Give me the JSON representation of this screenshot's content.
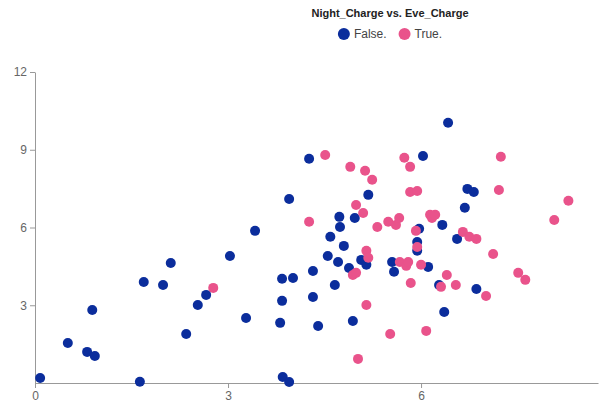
{
  "chart_data": {
    "type": "scatter",
    "title": "Night_Charge vs. Eve_Charge",
    "series": [
      {
        "name": "False.",
        "color": "#0b2d9c",
        "marker": "circle",
        "x": [
          0.08,
          0.51,
          0.81,
          0.93,
          0.89,
          1.63,
          1.69,
          1.99,
          2.11,
          2.35,
          2.53,
          2.66,
          3.03,
          3.28,
          3.42,
          3.81,
          3.84,
          3.84,
          3.85,
          3.95,
          3.95,
          4.01,
          4.26,
          4.32,
          4.32,
          4.4,
          4.55,
          4.59,
          4.66,
          4.71,
          4.74,
          4.73,
          4.8,
          4.88,
          4.94,
          4.97,
          5.07,
          5.15,
          5.18,
          5.55,
          5.58,
          5.94,
          5.94,
          5.97,
          6.03,
          6.11,
          6.28,
          6.33,
          6.36,
          6.42,
          6.56,
          6.68,
          6.72,
          6.82,
          6.86
        ],
        "values": [
          0.19,
          1.54,
          1.2,
          1.04,
          2.82,
          0.05,
          3.9,
          3.78,
          4.63,
          1.89,
          3.01,
          3.4,
          4.9,
          2.51,
          5.87,
          2.32,
          3.17,
          4.02,
          0.23,
          0.04,
          7.1,
          4.05,
          8.65,
          4.32,
          3.32,
          2.2,
          4.9,
          5.64,
          3.78,
          4.67,
          6.02,
          6.41,
          5.29,
          4.44,
          2.39,
          6.37,
          4.75,
          4.56,
          7.26,
          4.67,
          4.29,
          5.1,
          5.44,
          5.95,
          8.76,
          4.48,
          3.78,
          6.1,
          2.74,
          10.04,
          5.56,
          6.76,
          7.49,
          7.37,
          3.63
        ]
      },
      {
        "name": "True.",
        "color": "#e9538b",
        "marker": "circle",
        "x": [
          2.77,
          4.26,
          4.51,
          4.9,
          4.94,
          4.99,
          4.99,
          5.02,
          5.1,
          5.13,
          5.15,
          5.15,
          5.18,
          5.24,
          5.32,
          5.49,
          5.52,
          5.61,
          5.66,
          5.67,
          5.74,
          5.77,
          5.8,
          5.83,
          5.83,
          5.84,
          5.92,
          5.94,
          5.94,
          6.0,
          6.08,
          6.14,
          6.17,
          6.22,
          6.31,
          6.4,
          6.54,
          6.65,
          6.75,
          6.86,
          7.01,
          7.12,
          7.21,
          7.24,
          7.51,
          7.62,
          8.07,
          8.29
        ],
        "values": [
          3.67,
          6.22,
          8.8,
          8.34,
          4.17,
          4.25,
          6.87,
          0.93,
          6.56,
          8.19,
          3.01,
          5.1,
          4.83,
          7.84,
          6.02,
          6.22,
          1.89,
          6.1,
          6.37,
          4.67,
          8.69,
          4.52,
          4.67,
          7.37,
          8.34,
          3.86,
          5.87,
          5.25,
          7.41,
          4.56,
          2.01,
          6.49,
          6.37,
          6.49,
          3.71,
          4.17,
          3.78,
          5.83,
          5.64,
          5.56,
          3.36,
          4.98,
          7.45,
          8.73,
          4.25,
          3.98,
          6.29,
          7.03
        ]
      }
    ],
    "xlim": [
      0,
      8.75
    ],
    "ylim": [
      0,
      12
    ],
    "xticks": [
      0,
      3,
      6
    ],
    "yticks": [
      3,
      6,
      9,
      12
    ],
    "legend": "top",
    "grid": false
  }
}
